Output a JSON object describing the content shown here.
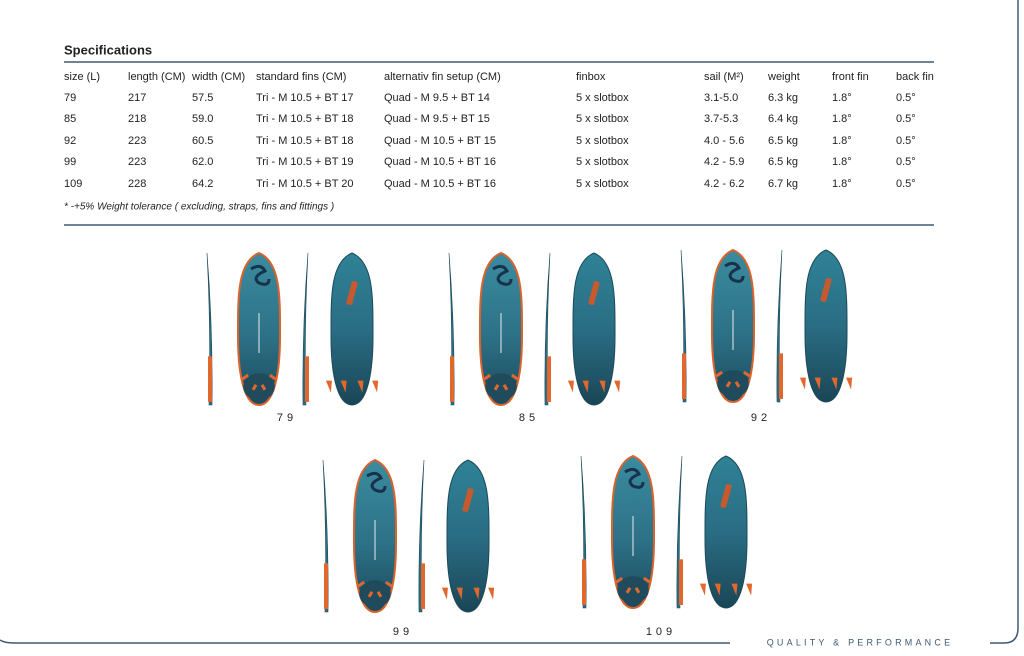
{
  "header": {
    "title": "Specifications"
  },
  "table": {
    "headers": [
      "size (L)",
      "length (CM)",
      "width (CM)",
      "standard fins (CM)",
      "alternativ fin setup (CM)",
      "finbox",
      "sail (M²)",
      "weight",
      "front fin",
      "back fin"
    ],
    "rows": [
      [
        "79",
        "217",
        "57.5",
        "Tri - M 10.5 + BT 17",
        "Quad - M 9.5 + BT 14",
        "5 x slotbox",
        "3.1-5.0",
        "6.3 kg",
        "1.8°",
        "0.5°"
      ],
      [
        "85",
        "218",
        "59.0",
        "Tri - M 10.5 + BT 18",
        "Quad - M 9.5 + BT 15",
        "5 x slotbox",
        "3.7-5.3",
        "6.4 kg",
        "1.8°",
        "0.5°"
      ],
      [
        "92",
        "223",
        "60.5",
        "Tri - M 10.5 + BT 18",
        "Quad - M 10.5 + BT 15",
        "5 x slotbox",
        "4.0 - 5.6",
        "6.5 kg",
        "1.8°",
        "0.5°"
      ],
      [
        "99",
        "223",
        "62.0",
        "Tri - M 10.5 + BT 19",
        "Quad - M 10.5 + BT 16",
        "5 x slotbox",
        "4.2 - 5.9",
        "6.5 kg",
        "1.8°",
        "0.5°"
      ],
      [
        "109",
        "228",
        "64.2",
        "Tri - M 10.5 + BT 20",
        "Quad - M 10.5 + BT 16",
        "5 x slotbox",
        "4.2 - 6.2",
        "6.7 kg",
        "1.8°",
        "0.5°"
      ]
    ],
    "footnote": "* -+5% Weight tolerance  ( excluding, straps, fins and fittings )"
  },
  "boards": [
    {
      "label": "79"
    },
    {
      "label": "85"
    },
    {
      "label": "92"
    },
    {
      "label": "99"
    },
    {
      "label": "109"
    }
  ],
  "footer": {
    "tagline": "QUALITY & PERFORMANCE"
  }
}
